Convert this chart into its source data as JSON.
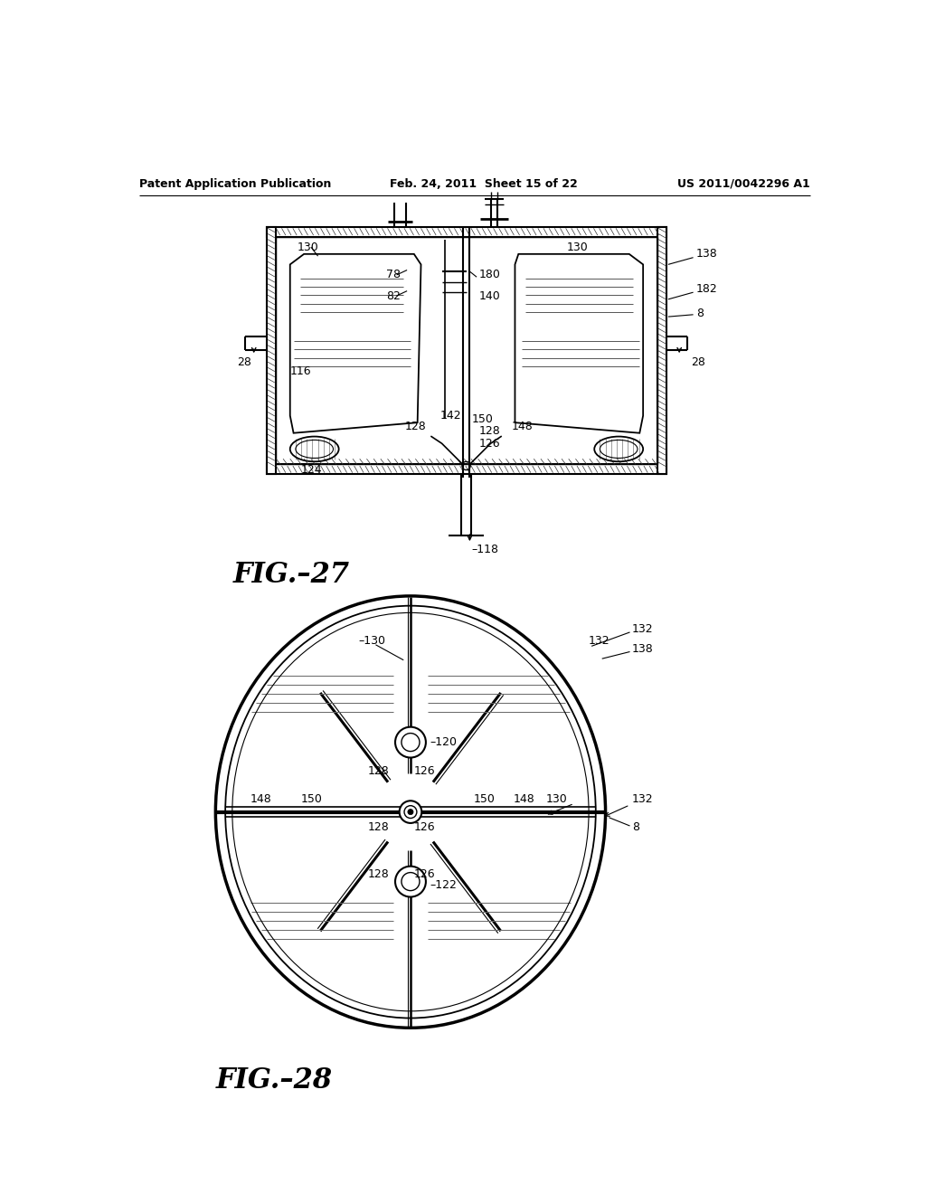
{
  "background_color": "#ffffff",
  "header_left": "Patent Application Publication",
  "header_center": "Feb. 24, 2011  Sheet 15 of 22",
  "header_right": "US 2011/0042296 A1",
  "fig27_label": "FIG.–27",
  "fig28_label": "FIG.–28",
  "line_color": "#000000",
  "text_color": "#000000"
}
